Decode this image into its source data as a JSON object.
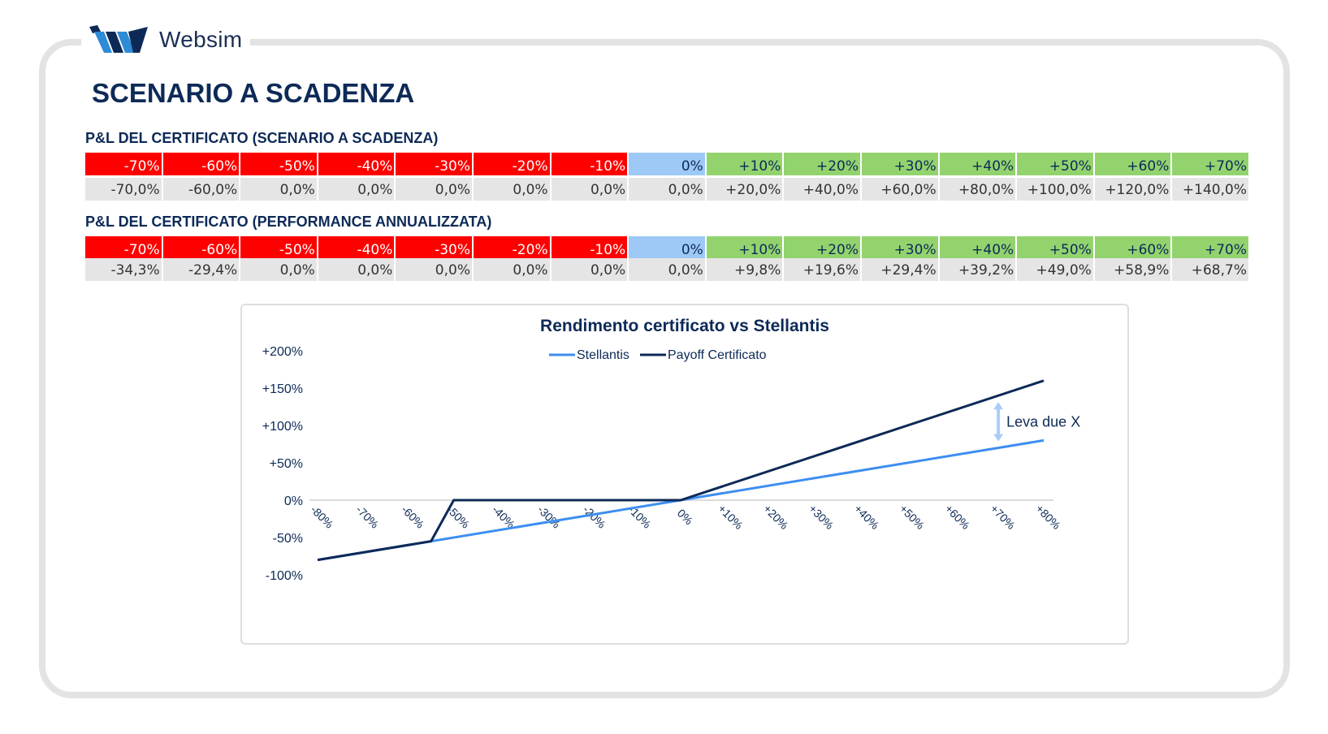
{
  "brand": {
    "name": "Websim"
  },
  "title": "SCENARIO A SCADENZA",
  "table1": {
    "title": "P&L DEL CERTIFICATO (SCENARIO A SCADENZA)",
    "headers": [
      "-70%",
      "-60%",
      "-50%",
      "-40%",
      "-30%",
      "-20%",
      "-10%",
      "0%",
      "+10%",
      "+20%",
      "+30%",
      "+40%",
      "+50%",
      "+60%",
      "+70%"
    ],
    "values": [
      "-70,0%",
      "-60,0%",
      "0,0%",
      "0,0%",
      "0,0%",
      "0,0%",
      "0,0%",
      "0,0%",
      "+20,0%",
      "+40,0%",
      "+60,0%",
      "+80,0%",
      "+100,0%",
      "+120,0%",
      "+140,0%"
    ]
  },
  "table2": {
    "title": "P&L DEL CERTIFICATO (PERFORMANCE ANNUALIZZATA)",
    "headers": [
      "-70%",
      "-60%",
      "-50%",
      "-40%",
      "-30%",
      "-20%",
      "-10%",
      "0%",
      "+10%",
      "+20%",
      "+30%",
      "+40%",
      "+50%",
      "+60%",
      "+70%"
    ],
    "values": [
      "-34,3%",
      "-29,4%",
      "0,0%",
      "0,0%",
      "0,0%",
      "0,0%",
      "0,0%",
      "0,0%",
      "+9,8%",
      "+19,6%",
      "+29,4%",
      "+39,2%",
      "+49,0%",
      "+58,9%",
      "+68,7%"
    ]
  },
  "colors": {
    "negative": "#ff0000",
    "zero": "#9ec9f7",
    "positive": "#92d36e",
    "stellantis": "#3d8ef0",
    "certificato": "#0d2a57",
    "annotation": "#a9cdf7"
  },
  "chart_data": {
    "type": "line",
    "title": "Rendimento certificato vs Stellantis",
    "categories": [
      "-80%",
      "-70%",
      "-60%",
      "-50%",
      "-40%",
      "-30%",
      "-20%",
      "-10%",
      "0%",
      "+10%",
      "+20%",
      "+30%",
      "+40%",
      "+50%",
      "+60%",
      "+70%",
      "+80%"
    ],
    "x": [
      -80,
      -70,
      -60,
      -50,
      -40,
      -30,
      -20,
      -10,
      0,
      10,
      20,
      30,
      40,
      50,
      60,
      70,
      80
    ],
    "series": [
      {
        "name": "Stellantis",
        "points": [
          [
            -80,
            -80
          ],
          [
            0,
            0
          ],
          [
            80,
            80
          ]
        ]
      },
      {
        "name": "Payoff Certificato",
        "points": [
          [
            -80,
            -80
          ],
          [
            -55,
            -55
          ],
          [
            -50,
            0
          ],
          [
            0,
            0
          ],
          [
            80,
            160
          ]
        ]
      }
    ],
    "ylim": [
      -100,
      200
    ],
    "yticks": [
      "+200%",
      "+150%",
      "+100%",
      "+50%",
      "0%",
      "-50%",
      "-100%"
    ],
    "ytick_values": [
      200,
      150,
      100,
      50,
      0,
      -50,
      -100
    ],
    "annotation": {
      "text": "Leva due X",
      "x": 70,
      "y_from": 70,
      "y_to": 140
    },
    "legend": "top"
  }
}
